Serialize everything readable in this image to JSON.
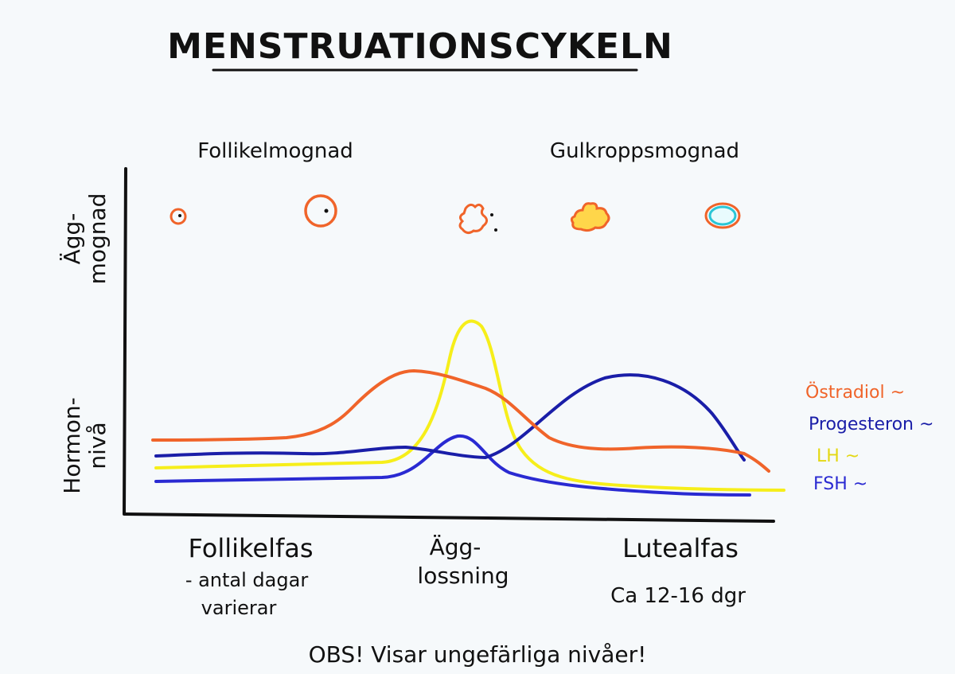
{
  "title": "MENSTRUATIONSCYKELN",
  "phase_labels": {
    "follicle_maturation": "Follikelmognad",
    "corpus_luteum_maturation": "Gulkroppsmognad"
  },
  "axis_labels": {
    "egg_maturation": [
      "Ägg-",
      "mognad"
    ],
    "hormone_level": [
      "Hormon-",
      "nivå"
    ]
  },
  "bottom_labels": {
    "follicular_phase": "Follikelfas",
    "follicular_note": [
      "- antal dagar",
      "varierar"
    ],
    "ovulation": [
      "Ägg-",
      "lossning"
    ],
    "luteal_phase": "Lutealfas",
    "luteal_note": "Ca 12-16 dgr"
  },
  "legend": [
    {
      "label": "Östradiol ~",
      "color": "#f0642a"
    },
    {
      "label": "Progesteron ~",
      "color": "#1a1ea8"
    },
    {
      "label": "LH ~",
      "color": "#f6ee1a"
    },
    {
      "label": "FSH ~",
      "color": "#2a2ad2"
    }
  ],
  "footer_note": "OBS! Visar ungefärliga nivåer!",
  "colors": {
    "estradiol": "#f0642a",
    "progesterone": "#1a1ea8",
    "lh": "#f6ee1a",
    "fsh": "#2a2ad2",
    "follicle_outline": "#f0642a",
    "corpus_luteum_fill": "#ffd64a",
    "corpus_albicans_ring": "#2ac6d6"
  }
}
